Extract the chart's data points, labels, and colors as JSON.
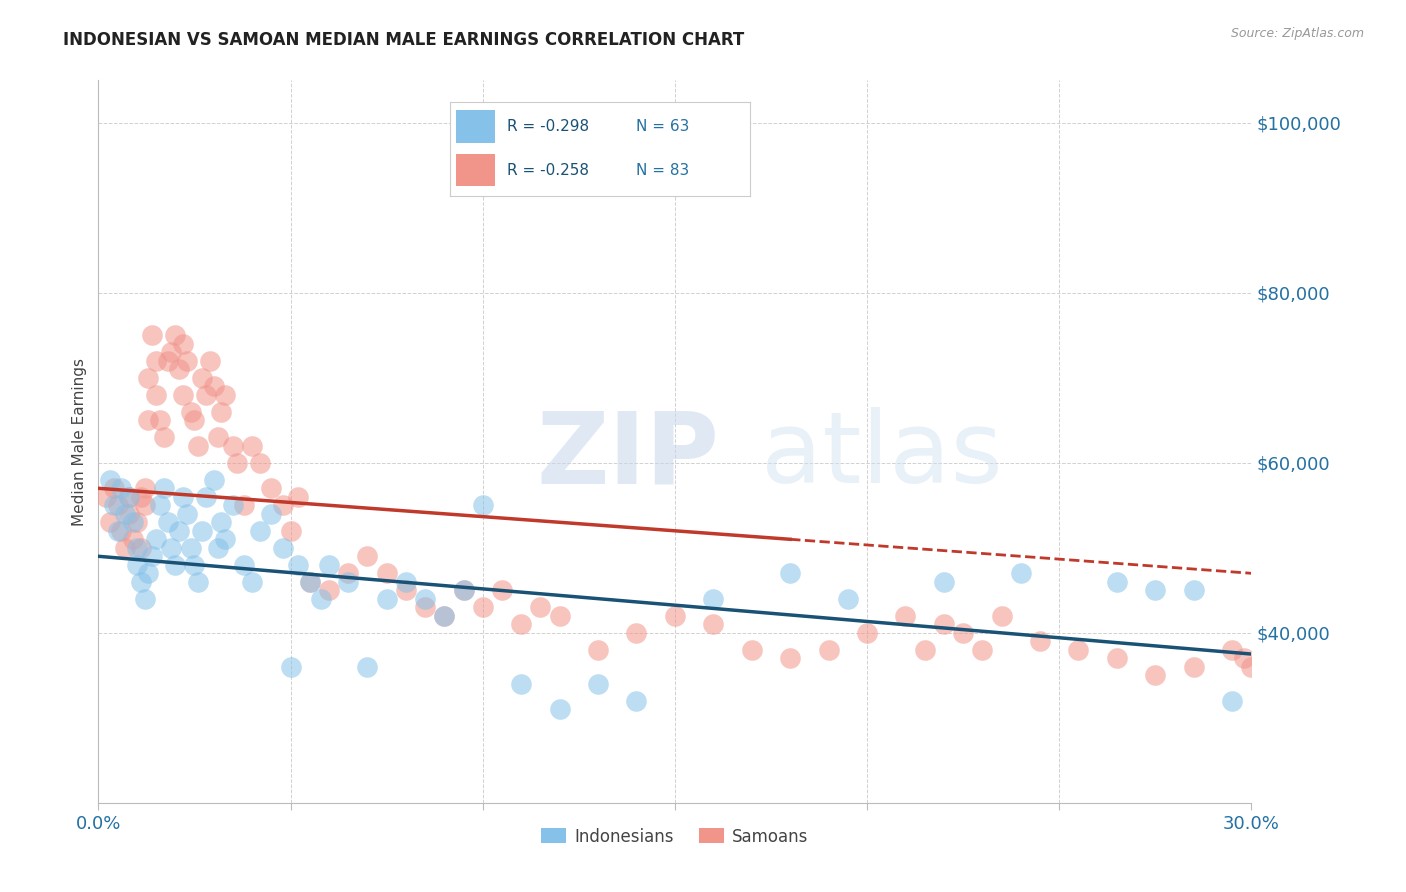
{
  "title": "INDONESIAN VS SAMOAN MEDIAN MALE EARNINGS CORRELATION CHART",
  "source": "Source: ZipAtlas.com",
  "ylabel": "Median Male Earnings",
  "xlim": [
    0.0,
    0.3
  ],
  "ylim": [
    20000,
    105000
  ],
  "xticks": [
    0.0,
    0.05,
    0.1,
    0.15,
    0.2,
    0.25,
    0.3
  ],
  "xticklabels": [
    "0.0%",
    "",
    "",
    "",
    "",
    "",
    "30.0%"
  ],
  "ytick_positions": [
    40000,
    60000,
    80000,
    100000
  ],
  "ytick_labels": [
    "$40,000",
    "$60,000",
    "$80,000",
    "$100,000"
  ],
  "indonesian_color": "#85C1E9",
  "samoan_color": "#F1948A",
  "trend_blue": "#1A5276",
  "trend_pink": "#C0392B",
  "legend_r_blue": "R = -0.298",
  "legend_n_blue": "N = 63",
  "legend_r_pink": "R = -0.258",
  "legend_n_pink": "N = 83",
  "watermark_zip": "ZIP",
  "watermark_atlas": "atlas",
  "indonesian_x": [
    0.003,
    0.004,
    0.005,
    0.006,
    0.007,
    0.008,
    0.009,
    0.01,
    0.01,
    0.011,
    0.012,
    0.013,
    0.014,
    0.015,
    0.016,
    0.017,
    0.018,
    0.019,
    0.02,
    0.021,
    0.022,
    0.023,
    0.024,
    0.025,
    0.026,
    0.027,
    0.028,
    0.03,
    0.031,
    0.032,
    0.033,
    0.035,
    0.038,
    0.04,
    0.042,
    0.045,
    0.048,
    0.05,
    0.052,
    0.055,
    0.058,
    0.06,
    0.065,
    0.07,
    0.075,
    0.08,
    0.085,
    0.09,
    0.095,
    0.1,
    0.11,
    0.12,
    0.13,
    0.14,
    0.16,
    0.18,
    0.195,
    0.22,
    0.24,
    0.265,
    0.275,
    0.285,
    0.295
  ],
  "indonesian_y": [
    58000,
    55000,
    52000,
    57000,
    54000,
    56000,
    53000,
    50000,
    48000,
    46000,
    44000,
    47000,
    49000,
    51000,
    55000,
    57000,
    53000,
    50000,
    48000,
    52000,
    56000,
    54000,
    50000,
    48000,
    46000,
    52000,
    56000,
    58000,
    50000,
    53000,
    51000,
    55000,
    48000,
    46000,
    52000,
    54000,
    50000,
    36000,
    48000,
    46000,
    44000,
    48000,
    46000,
    36000,
    44000,
    46000,
    44000,
    42000,
    45000,
    55000,
    34000,
    31000,
    34000,
    32000,
    44000,
    47000,
    44000,
    46000,
    47000,
    46000,
    45000,
    45000,
    32000
  ],
  "samoan_x": [
    0.002,
    0.003,
    0.004,
    0.005,
    0.006,
    0.007,
    0.008,
    0.008,
    0.009,
    0.01,
    0.011,
    0.011,
    0.012,
    0.012,
    0.013,
    0.013,
    0.014,
    0.015,
    0.015,
    0.016,
    0.017,
    0.018,
    0.019,
    0.02,
    0.021,
    0.022,
    0.022,
    0.023,
    0.024,
    0.025,
    0.026,
    0.027,
    0.028,
    0.029,
    0.03,
    0.031,
    0.032,
    0.033,
    0.035,
    0.036,
    0.038,
    0.04,
    0.042,
    0.045,
    0.048,
    0.05,
    0.052,
    0.055,
    0.06,
    0.065,
    0.07,
    0.075,
    0.08,
    0.085,
    0.09,
    0.095,
    0.1,
    0.105,
    0.11,
    0.115,
    0.12,
    0.13,
    0.14,
    0.15,
    0.16,
    0.17,
    0.18,
    0.19,
    0.2,
    0.21,
    0.215,
    0.22,
    0.225,
    0.23,
    0.235,
    0.245,
    0.255,
    0.265,
    0.275,
    0.285,
    0.295,
    0.298,
    0.3
  ],
  "samoan_y": [
    56000,
    53000,
    57000,
    55000,
    52000,
    50000,
    54000,
    56000,
    51000,
    53000,
    50000,
    56000,
    55000,
    57000,
    70000,
    65000,
    75000,
    72000,
    68000,
    65000,
    63000,
    72000,
    73000,
    75000,
    71000,
    68000,
    74000,
    72000,
    66000,
    65000,
    62000,
    70000,
    68000,
    72000,
    69000,
    63000,
    66000,
    68000,
    62000,
    60000,
    55000,
    62000,
    60000,
    57000,
    55000,
    52000,
    56000,
    46000,
    45000,
    47000,
    49000,
    47000,
    45000,
    43000,
    42000,
    45000,
    43000,
    45000,
    41000,
    43000,
    42000,
    38000,
    40000,
    42000,
    41000,
    38000,
    37000,
    38000,
    40000,
    42000,
    38000,
    41000,
    40000,
    38000,
    42000,
    39000,
    38000,
    37000,
    35000,
    36000,
    38000,
    37000,
    36000
  ],
  "trend_blue_x0": 0.0,
  "trend_blue_y0": 49000,
  "trend_blue_x1": 0.3,
  "trend_blue_y1": 37500,
  "trend_pink_x0": 0.0,
  "trend_pink_y0": 57000,
  "trend_pink_x1": 0.18,
  "trend_pink_y1": 51000,
  "trend_pink_dash_x0": 0.18,
  "trend_pink_dash_y0": 51000,
  "trend_pink_dash_x1": 0.3,
  "trend_pink_dash_y1": 47000
}
